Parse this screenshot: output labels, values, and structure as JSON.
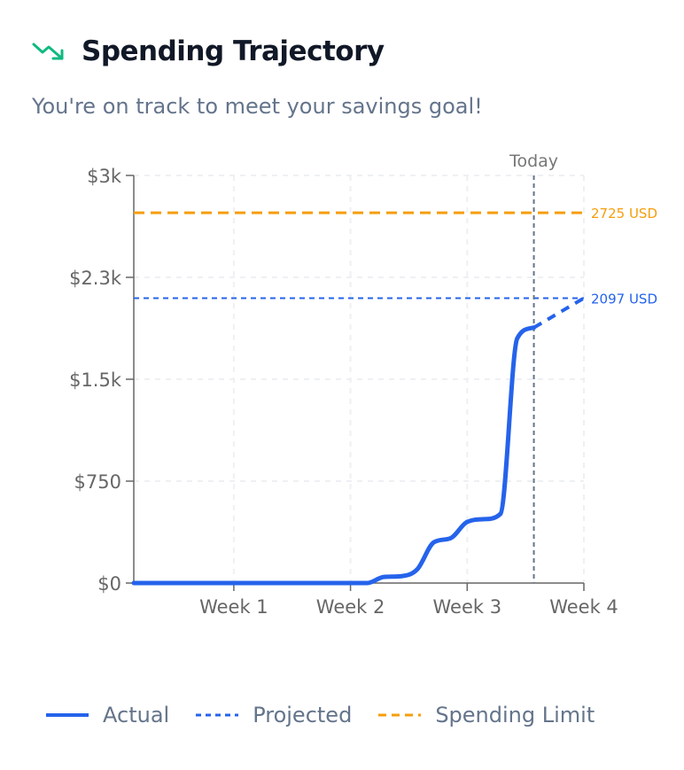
{
  "header": {
    "title": "Spending Trajectory",
    "subtitle": "You're on track to meet your savings goal!",
    "icon": "trending-down-icon",
    "icon_color": "#10b981"
  },
  "chart_data": {
    "type": "line",
    "x_unit": "day",
    "xlim": [
      1,
      28
    ],
    "ylim": [
      0,
      3000
    ],
    "x_ticks": [
      {
        "value": 7,
        "label": "Week 1"
      },
      {
        "value": 14,
        "label": "Week 2"
      },
      {
        "value": 21,
        "label": "Week 3"
      },
      {
        "value": 28,
        "label": "Week 4"
      }
    ],
    "y_ticks": [
      {
        "value": 0,
        "label": "$0"
      },
      {
        "value": 750,
        "label": "$750"
      },
      {
        "value": 1500,
        "label": "$1.5k"
      },
      {
        "value": 2250,
        "label": "$2.3k"
      },
      {
        "value": 3000,
        "label": "$3k"
      }
    ],
    "grid": true,
    "series": [
      {
        "name": "Actual",
        "color": "#2563eb",
        "style": "solid",
        "x": [
          1,
          2,
          3,
          4,
          5,
          6,
          7,
          8,
          9,
          10,
          11,
          12,
          13,
          14,
          15,
          16,
          17,
          18,
          19,
          20,
          21,
          22,
          23,
          24,
          25
        ],
        "y": [
          0,
          0,
          0,
          0,
          0,
          0,
          0,
          0,
          0,
          0,
          0,
          0,
          0,
          0,
          0,
          45,
          50,
          100,
          300,
          330,
          450,
          470,
          510,
          1800,
          1880
        ]
      },
      {
        "name": "Projected",
        "color": "#2563eb",
        "style": "dashed",
        "x": [
          25,
          28
        ],
        "y": [
          1880,
          2097
        ]
      },
      {
        "name": "Spending Limit",
        "color": "#f59e0b",
        "style": "dashed",
        "value": 2725
      }
    ],
    "reference_lines": [
      {
        "type": "horizontal",
        "value": 2725,
        "label": "2725 USD",
        "color": "#f59e0b"
      },
      {
        "type": "horizontal",
        "value": 2097,
        "label": "2097 USD",
        "color": "#2563eb"
      },
      {
        "type": "vertical",
        "value": 25,
        "label": "Today",
        "color": "#64748b"
      }
    ],
    "legend": {
      "placement": "bottom",
      "items": [
        "Actual",
        "Projected",
        "Spending Limit"
      ]
    }
  }
}
